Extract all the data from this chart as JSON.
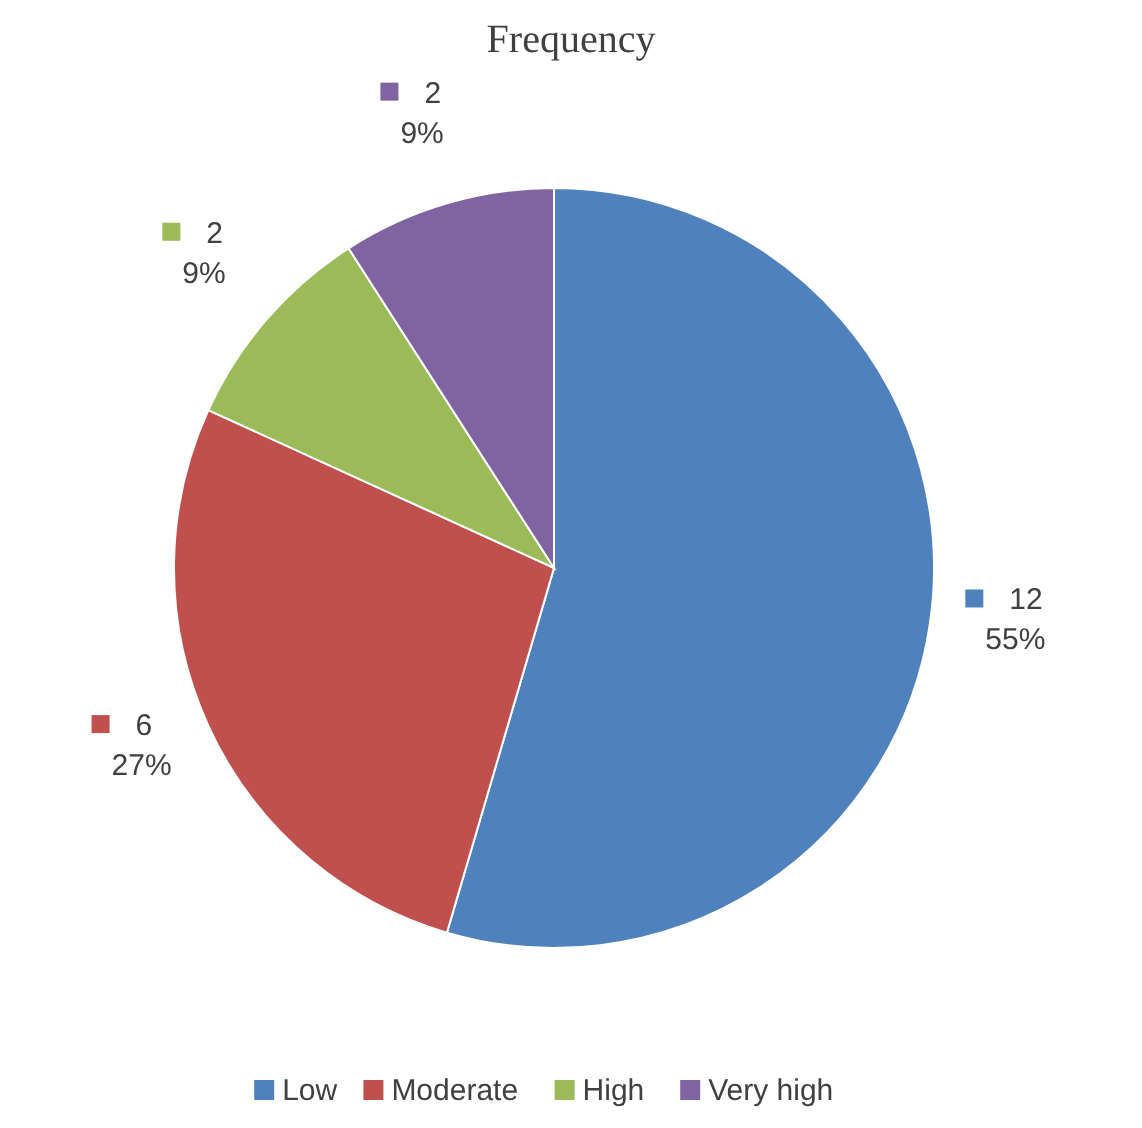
{
  "chart_data": {
    "type": "pie",
    "title": "Frequency",
    "categories": [
      "Low",
      "Moderate",
      "High",
      "Very high"
    ],
    "values": [
      12,
      6,
      2,
      2
    ],
    "colors": [
      "#4f81bd",
      "#c0504d",
      "#9bbb59",
      "#8064a2"
    ],
    "value_labels": [
      "12\n55%",
      "6\n27%",
      "2\n9%",
      "2\n9%"
    ],
    "legend": "bottom"
  }
}
